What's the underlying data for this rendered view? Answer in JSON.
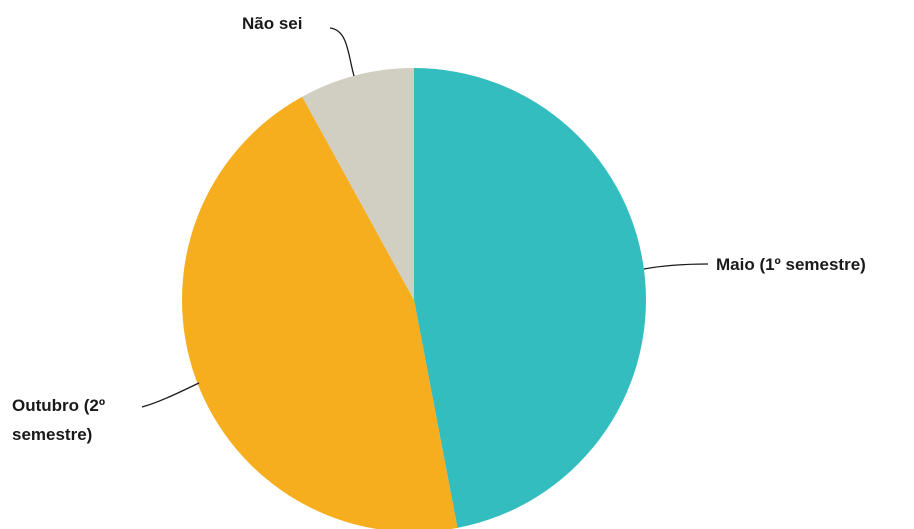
{
  "chart_data": {
    "type": "pie",
    "title": "",
    "slices": [
      {
        "label": "Maio (1º semestre)",
        "lines": [
          "Maio (1º semestre)"
        ],
        "value": 47,
        "color": "#33bdbf"
      },
      {
        "label": "Outubro (2º semestre)",
        "lines": [
          "Outubro (2º",
          "semestre)"
        ],
        "value": 45,
        "color": "#f6ae1e"
      },
      {
        "label": "Não sei",
        "lines": [
          "Não sei"
        ],
        "value": 8,
        "color": "#d0cfc1"
      }
    ],
    "legend": "none"
  }
}
